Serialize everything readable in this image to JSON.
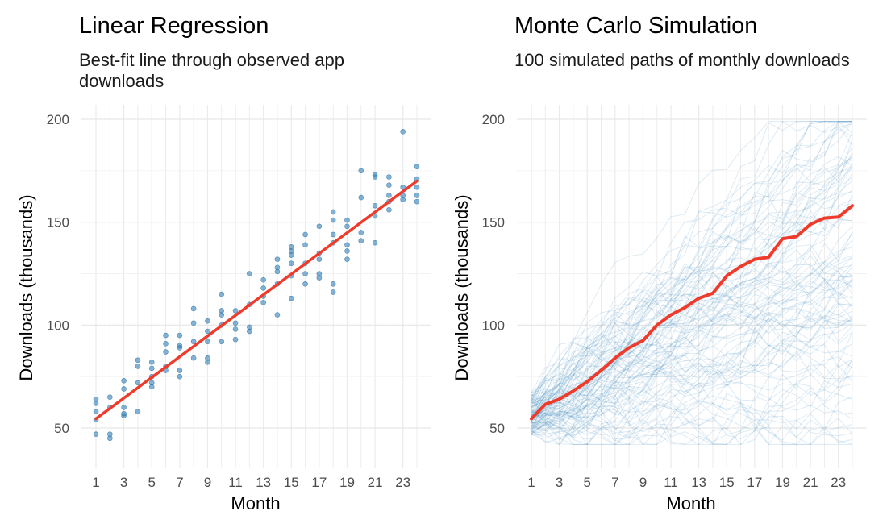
{
  "chart_data": [
    {
      "type": "scatter",
      "title": "Linear Regression",
      "subtitle": "Best-fit line through observed app downloads",
      "xlabel": "Month",
      "ylabel": "Downloads (thousands)",
      "xlim": [
        1,
        24
      ],
      "ylim": [
        45,
        195
      ],
      "x_ticks": [
        1,
        3,
        5,
        7,
        9,
        11,
        13,
        15,
        17,
        19,
        21,
        23
      ],
      "y_ticks": [
        50,
        100,
        150,
        200
      ],
      "grid": true,
      "point_color": "#3182bd",
      "line_color": "#ef3b2c",
      "points": [
        {
          "x": 1,
          "y": 47
        },
        {
          "x": 1,
          "y": 54
        },
        {
          "x": 1,
          "y": 58
        },
        {
          "x": 1,
          "y": 62
        },
        {
          "x": 1,
          "y": 64
        },
        {
          "x": 2,
          "y": 45
        },
        {
          "x": 2,
          "y": 47
        },
        {
          "x": 2,
          "y": 60
        },
        {
          "x": 2,
          "y": 65
        },
        {
          "x": 3,
          "y": 56
        },
        {
          "x": 3,
          "y": 57
        },
        {
          "x": 3,
          "y": 60
        },
        {
          "x": 3,
          "y": 69
        },
        {
          "x": 3,
          "y": 73
        },
        {
          "x": 4,
          "y": 58
        },
        {
          "x": 4,
          "y": 72
        },
        {
          "x": 4,
          "y": 80
        },
        {
          "x": 4,
          "y": 83
        },
        {
          "x": 5,
          "y": 70
        },
        {
          "x": 5,
          "y": 72
        },
        {
          "x": 5,
          "y": 75
        },
        {
          "x": 5,
          "y": 79
        },
        {
          "x": 5,
          "y": 82
        },
        {
          "x": 6,
          "y": 78
        },
        {
          "x": 6,
          "y": 80
        },
        {
          "x": 6,
          "y": 87
        },
        {
          "x": 6,
          "y": 91
        },
        {
          "x": 6,
          "y": 95
        },
        {
          "x": 7,
          "y": 75
        },
        {
          "x": 7,
          "y": 78
        },
        {
          "x": 7,
          "y": 89
        },
        {
          "x": 7,
          "y": 90
        },
        {
          "x": 7,
          "y": 95
        },
        {
          "x": 8,
          "y": 84
        },
        {
          "x": 8,
          "y": 92
        },
        {
          "x": 8,
          "y": 101
        },
        {
          "x": 8,
          "y": 108
        },
        {
          "x": 9,
          "y": 82
        },
        {
          "x": 9,
          "y": 84
        },
        {
          "x": 9,
          "y": 92
        },
        {
          "x": 9,
          "y": 97
        },
        {
          "x": 9,
          "y": 102
        },
        {
          "x": 10,
          "y": 92
        },
        {
          "x": 10,
          "y": 100
        },
        {
          "x": 10,
          "y": 105
        },
        {
          "x": 10,
          "y": 107
        },
        {
          "x": 10,
          "y": 115
        },
        {
          "x": 11,
          "y": 93
        },
        {
          "x": 11,
          "y": 98
        },
        {
          "x": 11,
          "y": 101
        },
        {
          "x": 11,
          "y": 107
        },
        {
          "x": 12,
          "y": 97
        },
        {
          "x": 12,
          "y": 99
        },
        {
          "x": 12,
          "y": 110
        },
        {
          "x": 12,
          "y": 125
        },
        {
          "x": 13,
          "y": 111
        },
        {
          "x": 13,
          "y": 114
        },
        {
          "x": 13,
          "y": 118
        },
        {
          "x": 13,
          "y": 122
        },
        {
          "x": 14,
          "y": 105
        },
        {
          "x": 14,
          "y": 120
        },
        {
          "x": 14,
          "y": 126
        },
        {
          "x": 14,
          "y": 128
        },
        {
          "x": 14,
          "y": 132
        },
        {
          "x": 15,
          "y": 113
        },
        {
          "x": 15,
          "y": 124
        },
        {
          "x": 15,
          "y": 130
        },
        {
          "x": 15,
          "y": 134
        },
        {
          "x": 15,
          "y": 136
        },
        {
          "x": 15,
          "y": 138
        },
        {
          "x": 16,
          "y": 120
        },
        {
          "x": 16,
          "y": 125
        },
        {
          "x": 16,
          "y": 130
        },
        {
          "x": 16,
          "y": 139
        },
        {
          "x": 16,
          "y": 144
        },
        {
          "x": 17,
          "y": 123
        },
        {
          "x": 17,
          "y": 125
        },
        {
          "x": 17,
          "y": 132
        },
        {
          "x": 17,
          "y": 135
        },
        {
          "x": 17,
          "y": 148
        },
        {
          "x": 18,
          "y": 116
        },
        {
          "x": 18,
          "y": 120
        },
        {
          "x": 18,
          "y": 140
        },
        {
          "x": 18,
          "y": 144
        },
        {
          "x": 18,
          "y": 151
        },
        {
          "x": 18,
          "y": 155
        },
        {
          "x": 19,
          "y": 132
        },
        {
          "x": 19,
          "y": 136
        },
        {
          "x": 19,
          "y": 139
        },
        {
          "x": 19,
          "y": 148
        },
        {
          "x": 19,
          "y": 151
        },
        {
          "x": 20,
          "y": 141
        },
        {
          "x": 20,
          "y": 145
        },
        {
          "x": 20,
          "y": 162
        },
        {
          "x": 20,
          "y": 175
        },
        {
          "x": 21,
          "y": 140
        },
        {
          "x": 21,
          "y": 153
        },
        {
          "x": 21,
          "y": 158
        },
        {
          "x": 21,
          "y": 172
        },
        {
          "x": 21,
          "y": 173
        },
        {
          "x": 22,
          "y": 156
        },
        {
          "x": 22,
          "y": 160
        },
        {
          "x": 22,
          "y": 163
        },
        {
          "x": 22,
          "y": 168
        },
        {
          "x": 22,
          "y": 172
        },
        {
          "x": 23,
          "y": 161
        },
        {
          "x": 23,
          "y": 163
        },
        {
          "x": 23,
          "y": 167
        },
        {
          "x": 23,
          "y": 194
        },
        {
          "x": 24,
          "y": 160
        },
        {
          "x": 24,
          "y": 163
        },
        {
          "x": 24,
          "y": 167
        },
        {
          "x": 24,
          "y": 171
        },
        {
          "x": 24,
          "y": 177
        }
      ],
      "fit_line": {
        "x": [
          1,
          24
        ],
        "y": [
          54.5,
          170
        ]
      }
    },
    {
      "type": "line",
      "title": "Monte Carlo Simulation",
      "subtitle": "100 simulated paths of monthly downloads",
      "xlabel": "Month",
      "ylabel": "Downloads (thousands)",
      "xlim": [
        1,
        24
      ],
      "ylim": [
        40,
        200
      ],
      "x_ticks": [
        1,
        3,
        5,
        7,
        9,
        11,
        13,
        15,
        17,
        19,
        21,
        23
      ],
      "y_ticks": [
        50,
        100,
        150,
        200
      ],
      "grid": true,
      "path_count": 100,
      "path_color": "#3182bd",
      "line_color": "#ef3b2c",
      "x": [
        1,
        2,
        3,
        4,
        5,
        6,
        7,
        8,
        9,
        10,
        11,
        12,
        13,
        14,
        15,
        16,
        17,
        18,
        19,
        20,
        21,
        22,
        23,
        24
      ],
      "mean_path": [
        54.5,
        61.5,
        64,
        68,
        72.5,
        78,
        84,
        89,
        92.5,
        100,
        105,
        108.5,
        113,
        115.5,
        124,
        128.5,
        132,
        133,
        142,
        143,
        149,
        152,
        152.5,
        158
      ]
    }
  ]
}
